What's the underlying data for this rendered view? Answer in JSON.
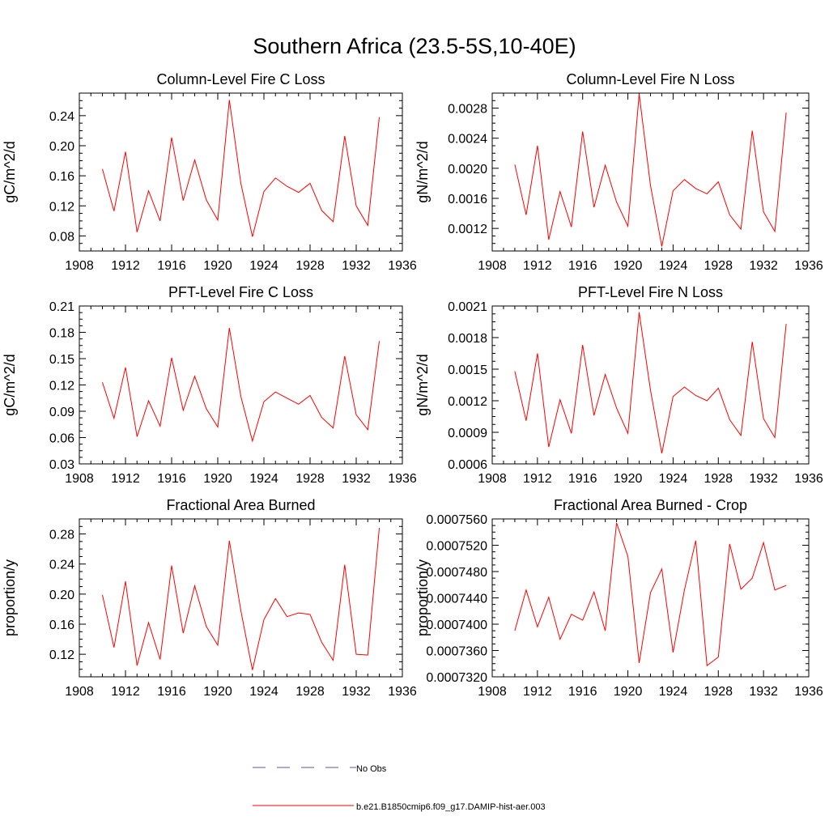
{
  "figure": {
    "title": "Southern Africa (23.5-5S,10-40E)",
    "colors": {
      "series": "#ff0000",
      "noobs": "#5a5aa0",
      "axes": "#000000"
    }
  },
  "legend": {
    "items": [
      {
        "label": "No Obs",
        "style": "dashed"
      },
      {
        "label": "b.e21.B1850cmip6.f09_g17.DAMIP-hist-aer.003",
        "style": "solid"
      }
    ]
  },
  "chart_data": [
    {
      "type": "line",
      "title": "Column-Level Fire C Loss",
      "ylabel": "gC/m^2/d",
      "xlim": [
        1908,
        1936
      ],
      "ylim": [
        0.06,
        0.27
      ],
      "xticks": [
        1908,
        1912,
        1916,
        1920,
        1924,
        1928,
        1932,
        1936
      ],
      "yticks": [
        "0.08",
        "0.12",
        "0.16",
        "0.20",
        "0.24"
      ],
      "x": [
        1910,
        1911,
        1912,
        1913,
        1914,
        1915,
        1916,
        1917,
        1918,
        1919,
        1920,
        1921,
        1922,
        1923,
        1924,
        1925,
        1926,
        1927,
        1928,
        1929,
        1930,
        1931,
        1932,
        1933,
        1934
      ],
      "series": [
        {
          "name": "b.e21.B1850cmip6.f09_g17.DAMIP-hist-aer.003",
          "values": [
            0.169,
            0.113,
            0.192,
            0.085,
            0.14,
            0.1,
            0.211,
            0.127,
            0.181,
            0.128,
            0.101,
            0.261,
            0.15,
            0.079,
            0.139,
            0.157,
            0.146,
            0.138,
            0.15,
            0.114,
            0.099,
            0.213,
            0.12,
            0.094,
            0.238
          ]
        }
      ]
    },
    {
      "type": "line",
      "title": "Column-Level Fire N Loss",
      "ylabel": "gN/m^2/d",
      "xlim": [
        1908,
        1936
      ],
      "ylim": [
        0.0009,
        0.003
      ],
      "xticks": [
        1908,
        1912,
        1916,
        1920,
        1924,
        1928,
        1932,
        1936
      ],
      "yticks": [
        "0.0012",
        "0.0016",
        "0.0020",
        "0.0024",
        "0.0028"
      ],
      "x": [
        1910,
        1911,
        1912,
        1913,
        1914,
        1915,
        1916,
        1917,
        1918,
        1919,
        1920,
        1921,
        1922,
        1923,
        1924,
        1925,
        1926,
        1927,
        1928,
        1929,
        1930,
        1931,
        1932,
        1933,
        1934
      ],
      "series": [
        {
          "name": "b.e21.B1850cmip6.f09_g17.DAMIP-hist-aer.003",
          "values": [
            0.00205,
            0.00138,
            0.0023,
            0.00105,
            0.00169,
            0.00122,
            0.00249,
            0.00148,
            0.00204,
            0.00155,
            0.00123,
            0.00299,
            0.00177,
            0.00096,
            0.0017,
            0.00185,
            0.00173,
            0.00166,
            0.00182,
            0.00138,
            0.00119,
            0.0025,
            0.00142,
            0.00116,
            0.00274
          ]
        }
      ]
    },
    {
      "type": "line",
      "title": "PFT-Level Fire C Loss",
      "ylabel": "gC/m^2/d",
      "xlim": [
        1908,
        1936
      ],
      "ylim": [
        0.03,
        0.21
      ],
      "xticks": [
        1908,
        1912,
        1916,
        1920,
        1924,
        1928,
        1932,
        1936
      ],
      "yticks": [
        "0.03",
        "0.06",
        "0.09",
        "0.12",
        "0.15",
        "0.18",
        "0.21"
      ],
      "x": [
        1910,
        1911,
        1912,
        1913,
        1914,
        1915,
        1916,
        1917,
        1918,
        1919,
        1920,
        1921,
        1922,
        1923,
        1924,
        1925,
        1926,
        1927,
        1928,
        1929,
        1930,
        1931,
        1932,
        1933,
        1934
      ],
      "series": [
        {
          "name": "b.e21.B1850cmip6.f09_g17.DAMIP-hist-aer.003",
          "values": [
            0.123,
            0.082,
            0.14,
            0.061,
            0.102,
            0.073,
            0.151,
            0.091,
            0.13,
            0.093,
            0.072,
            0.185,
            0.107,
            0.056,
            0.101,
            0.112,
            0.105,
            0.098,
            0.108,
            0.083,
            0.071,
            0.153,
            0.086,
            0.069,
            0.17
          ]
        }
      ]
    },
    {
      "type": "line",
      "title": "PFT-Level Fire N Loss",
      "ylabel": "gN/m^2/d",
      "xlim": [
        1908,
        1936
      ],
      "ylim": [
        0.0006,
        0.0021
      ],
      "xticks": [
        1908,
        1912,
        1916,
        1920,
        1924,
        1928,
        1932,
        1936
      ],
      "yticks": [
        "0.0006",
        "0.0009",
        "0.0012",
        "0.0015",
        "0.0018",
        "0.0021"
      ],
      "x": [
        1910,
        1911,
        1912,
        1913,
        1914,
        1915,
        1916,
        1917,
        1918,
        1919,
        1920,
        1921,
        1922,
        1923,
        1924,
        1925,
        1926,
        1927,
        1928,
        1929,
        1930,
        1931,
        1932,
        1933,
        1934
      ],
      "series": [
        {
          "name": "b.e21.B1850cmip6.f09_g17.DAMIP-hist-aer.003",
          "values": [
            0.00148,
            0.00101,
            0.00165,
            0.00076,
            0.00121,
            0.00089,
            0.00173,
            0.00106,
            0.00145,
            0.00113,
            0.00089,
            0.00204,
            0.0013,
            0.0007,
            0.00124,
            0.00133,
            0.00125,
            0.0012,
            0.00132,
            0.00102,
            0.00087,
            0.00176,
            0.00103,
            0.00085,
            0.00193
          ]
        }
      ]
    },
    {
      "type": "line",
      "title": "Fractional Area Burned",
      "ylabel": "proportion/y",
      "xlim": [
        1908,
        1936
      ],
      "ylim": [
        0.09,
        0.3
      ],
      "xticks": [
        1908,
        1912,
        1916,
        1920,
        1924,
        1928,
        1932,
        1936
      ],
      "yticks": [
        "0.12",
        "0.16",
        "0.20",
        "0.24",
        "0.28"
      ],
      "x": [
        1910,
        1911,
        1912,
        1913,
        1914,
        1915,
        1916,
        1917,
        1918,
        1919,
        1920,
        1921,
        1922,
        1923,
        1924,
        1925,
        1926,
        1927,
        1928,
        1929,
        1930,
        1931,
        1932,
        1933,
        1934
      ],
      "series": [
        {
          "name": "b.e21.B1850cmip6.f09_g17.DAMIP-hist-aer.003",
          "values": [
            0.199,
            0.129,
            0.217,
            0.105,
            0.162,
            0.113,
            0.238,
            0.148,
            0.211,
            0.157,
            0.132,
            0.271,
            0.178,
            0.099,
            0.166,
            0.194,
            0.17,
            0.175,
            0.173,
            0.136,
            0.112,
            0.239,
            0.12,
            0.119,
            0.288
          ]
        }
      ]
    },
    {
      "type": "line",
      "title": "Fractional Area Burned - Crop",
      "ylabel": "proportion/y",
      "xlim": [
        1908,
        1936
      ],
      "ylim": [
        0.000732,
        0.000756
      ],
      "xticks": [
        1908,
        1912,
        1916,
        1920,
        1924,
        1928,
        1932,
        1936
      ],
      "yticks": [
        "0.0007320",
        "0.0007360",
        "0.0007400",
        "0.0007440",
        "0.0007480",
        "0.0007520",
        "0.0007560"
      ],
      "x": [
        1910,
        1911,
        1912,
        1913,
        1914,
        1915,
        1916,
        1917,
        1918,
        1919,
        1920,
        1921,
        1922,
        1923,
        1924,
        1925,
        1926,
        1927,
        1928,
        1929,
        1930,
        1931,
        1932,
        1933,
        1934
      ],
      "series": [
        {
          "name": "b.e21.B1850cmip6.f09_g17.DAMIP-hist-aer.003",
          "values": [
            0.000739,
            0.0007452,
            0.0007396,
            0.0007441,
            0.0007377,
            0.0007415,
            0.0007406,
            0.0007449,
            0.000739,
            0.0007554,
            0.0007503,
            0.0007341,
            0.0007448,
            0.0007484,
            0.0007357,
            0.0007452,
            0.0007527,
            0.0007337,
            0.000735,
            0.0007522,
            0.0007453,
            0.000747,
            0.0007524,
            0.0007452,
            0.0007459
          ]
        }
      ]
    }
  ]
}
